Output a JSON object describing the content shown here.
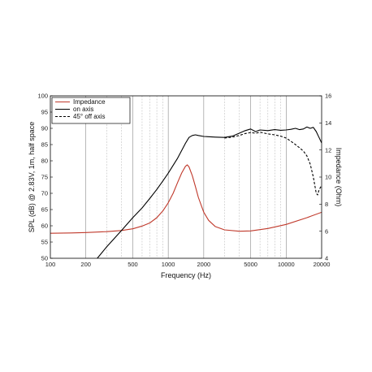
{
  "chart_data": {
    "type": "line",
    "xlabel": "Frequency (Hz)",
    "ylabel_left": "SPL (dB) @ 2.83V, 1m, half space",
    "ylabel_right": "Impedance (Ohm)",
    "xscale": "log",
    "xlim": [
      100,
      20000
    ],
    "ylim_left": [
      50,
      100
    ],
    "ylim_right": [
      4,
      16
    ],
    "x_ticks": [
      {
        "value": 100,
        "label": "100"
      },
      {
        "value": 200,
        "label": "200"
      },
      {
        "value": 500,
        "label": "500"
      },
      {
        "value": 1000,
        "label": "1000"
      },
      {
        "value": 2000,
        "label": "2000"
      },
      {
        "value": 5000,
        "label": "5000"
      },
      {
        "value": 10000,
        "label": "10000"
      },
      {
        "value": 20000,
        "label": "20000"
      }
    ],
    "y_left_ticks": [
      {
        "value": 50,
        "label": "50"
      },
      {
        "value": 55,
        "label": "55"
      },
      {
        "value": 60,
        "label": "60"
      },
      {
        "value": 65,
        "label": "65"
      },
      {
        "value": 70,
        "label": "70"
      },
      {
        "value": 75,
        "label": "75"
      },
      {
        "value": 80,
        "label": "80"
      },
      {
        "value": 85,
        "label": "85"
      },
      {
        "value": 90,
        "label": "90"
      },
      {
        "value": 95,
        "label": "95"
      },
      {
        "value": 100,
        "label": "100"
      }
    ],
    "y_right_ticks": [
      {
        "value": 4,
        "label": "4"
      },
      {
        "value": 6,
        "label": "6"
      },
      {
        "value": 8,
        "label": "8"
      },
      {
        "value": 10,
        "label": "10"
      },
      {
        "value": 12,
        "label": "12"
      },
      {
        "value": 14,
        "label": "14"
      },
      {
        "value": 16,
        "label": "16"
      }
    ],
    "grid": "vertical",
    "legend_position": "top-left",
    "series": [
      {
        "name": "Impedance",
        "axis": "right",
        "color": "#c0392b",
        "style": "solid",
        "x": [
          100,
          150,
          200,
          300,
          400,
          500,
          600,
          700,
          800,
          900,
          1000,
          1100,
          1200,
          1300,
          1400,
          1450,
          1500,
          1600,
          1700,
          1800,
          2000,
          2200,
          2500,
          3000,
          4000,
          5000,
          7000,
          10000,
          15000,
          20000
        ],
        "y": [
          5.85,
          5.87,
          5.9,
          5.97,
          6.05,
          6.18,
          6.38,
          6.62,
          7.0,
          7.5,
          8.1,
          8.8,
          9.6,
          10.3,
          10.8,
          10.9,
          10.75,
          10.1,
          9.3,
          8.5,
          7.4,
          6.8,
          6.35,
          6.1,
          6.0,
          6.02,
          6.2,
          6.5,
          7.0,
          7.4
        ]
      },
      {
        "name": "on axis",
        "axis": "left",
        "color": "#000000",
        "style": "solid",
        "x": [
          250,
          300,
          400,
          500,
          600,
          700,
          800,
          900,
          1000,
          1100,
          1200,
          1300,
          1400,
          1500,
          1600,
          1700,
          1800,
          2000,
          2500,
          3000,
          3500,
          4000,
          4500,
          5000,
          5500,
          6000,
          7000,
          8000,
          9000,
          10000,
          11000,
          12000,
          13000,
          14000,
          15000,
          16000,
          17000,
          18000,
          19000,
          20000
        ],
        "y": [
          50,
          53.5,
          58.5,
          62.5,
          65.5,
          68.5,
          71.2,
          73.8,
          76.2,
          78.6,
          80.8,
          83.2,
          85.4,
          87.2,
          87.8,
          88.0,
          87.8,
          87.5,
          87.3,
          87.2,
          87.6,
          88.5,
          89.3,
          89.8,
          89.0,
          89.5,
          89.3,
          89.6,
          89.4,
          89.5,
          89.7,
          90.0,
          89.6,
          89.8,
          90.4,
          90.0,
          90.3,
          89.0,
          87.2,
          85.5
        ]
      },
      {
        "name": "45° off axis",
        "axis": "left",
        "color": "#000000",
        "style": "dashed",
        "x": [
          3000,
          3500,
          4000,
          4500,
          5000,
          5500,
          6000,
          7000,
          8000,
          9000,
          10000,
          11000,
          12000,
          13000,
          14000,
          15000,
          16000,
          17000,
          18000,
          18500,
          19000,
          20000
        ],
        "y": [
          87.0,
          87.3,
          87.8,
          88.4,
          88.7,
          88.5,
          88.8,
          88.3,
          88.0,
          87.6,
          87.0,
          86.0,
          85.0,
          84.0,
          83.0,
          81.5,
          79.0,
          75.0,
          70.0,
          69.5,
          71.0,
          72.5
        ]
      }
    ]
  }
}
